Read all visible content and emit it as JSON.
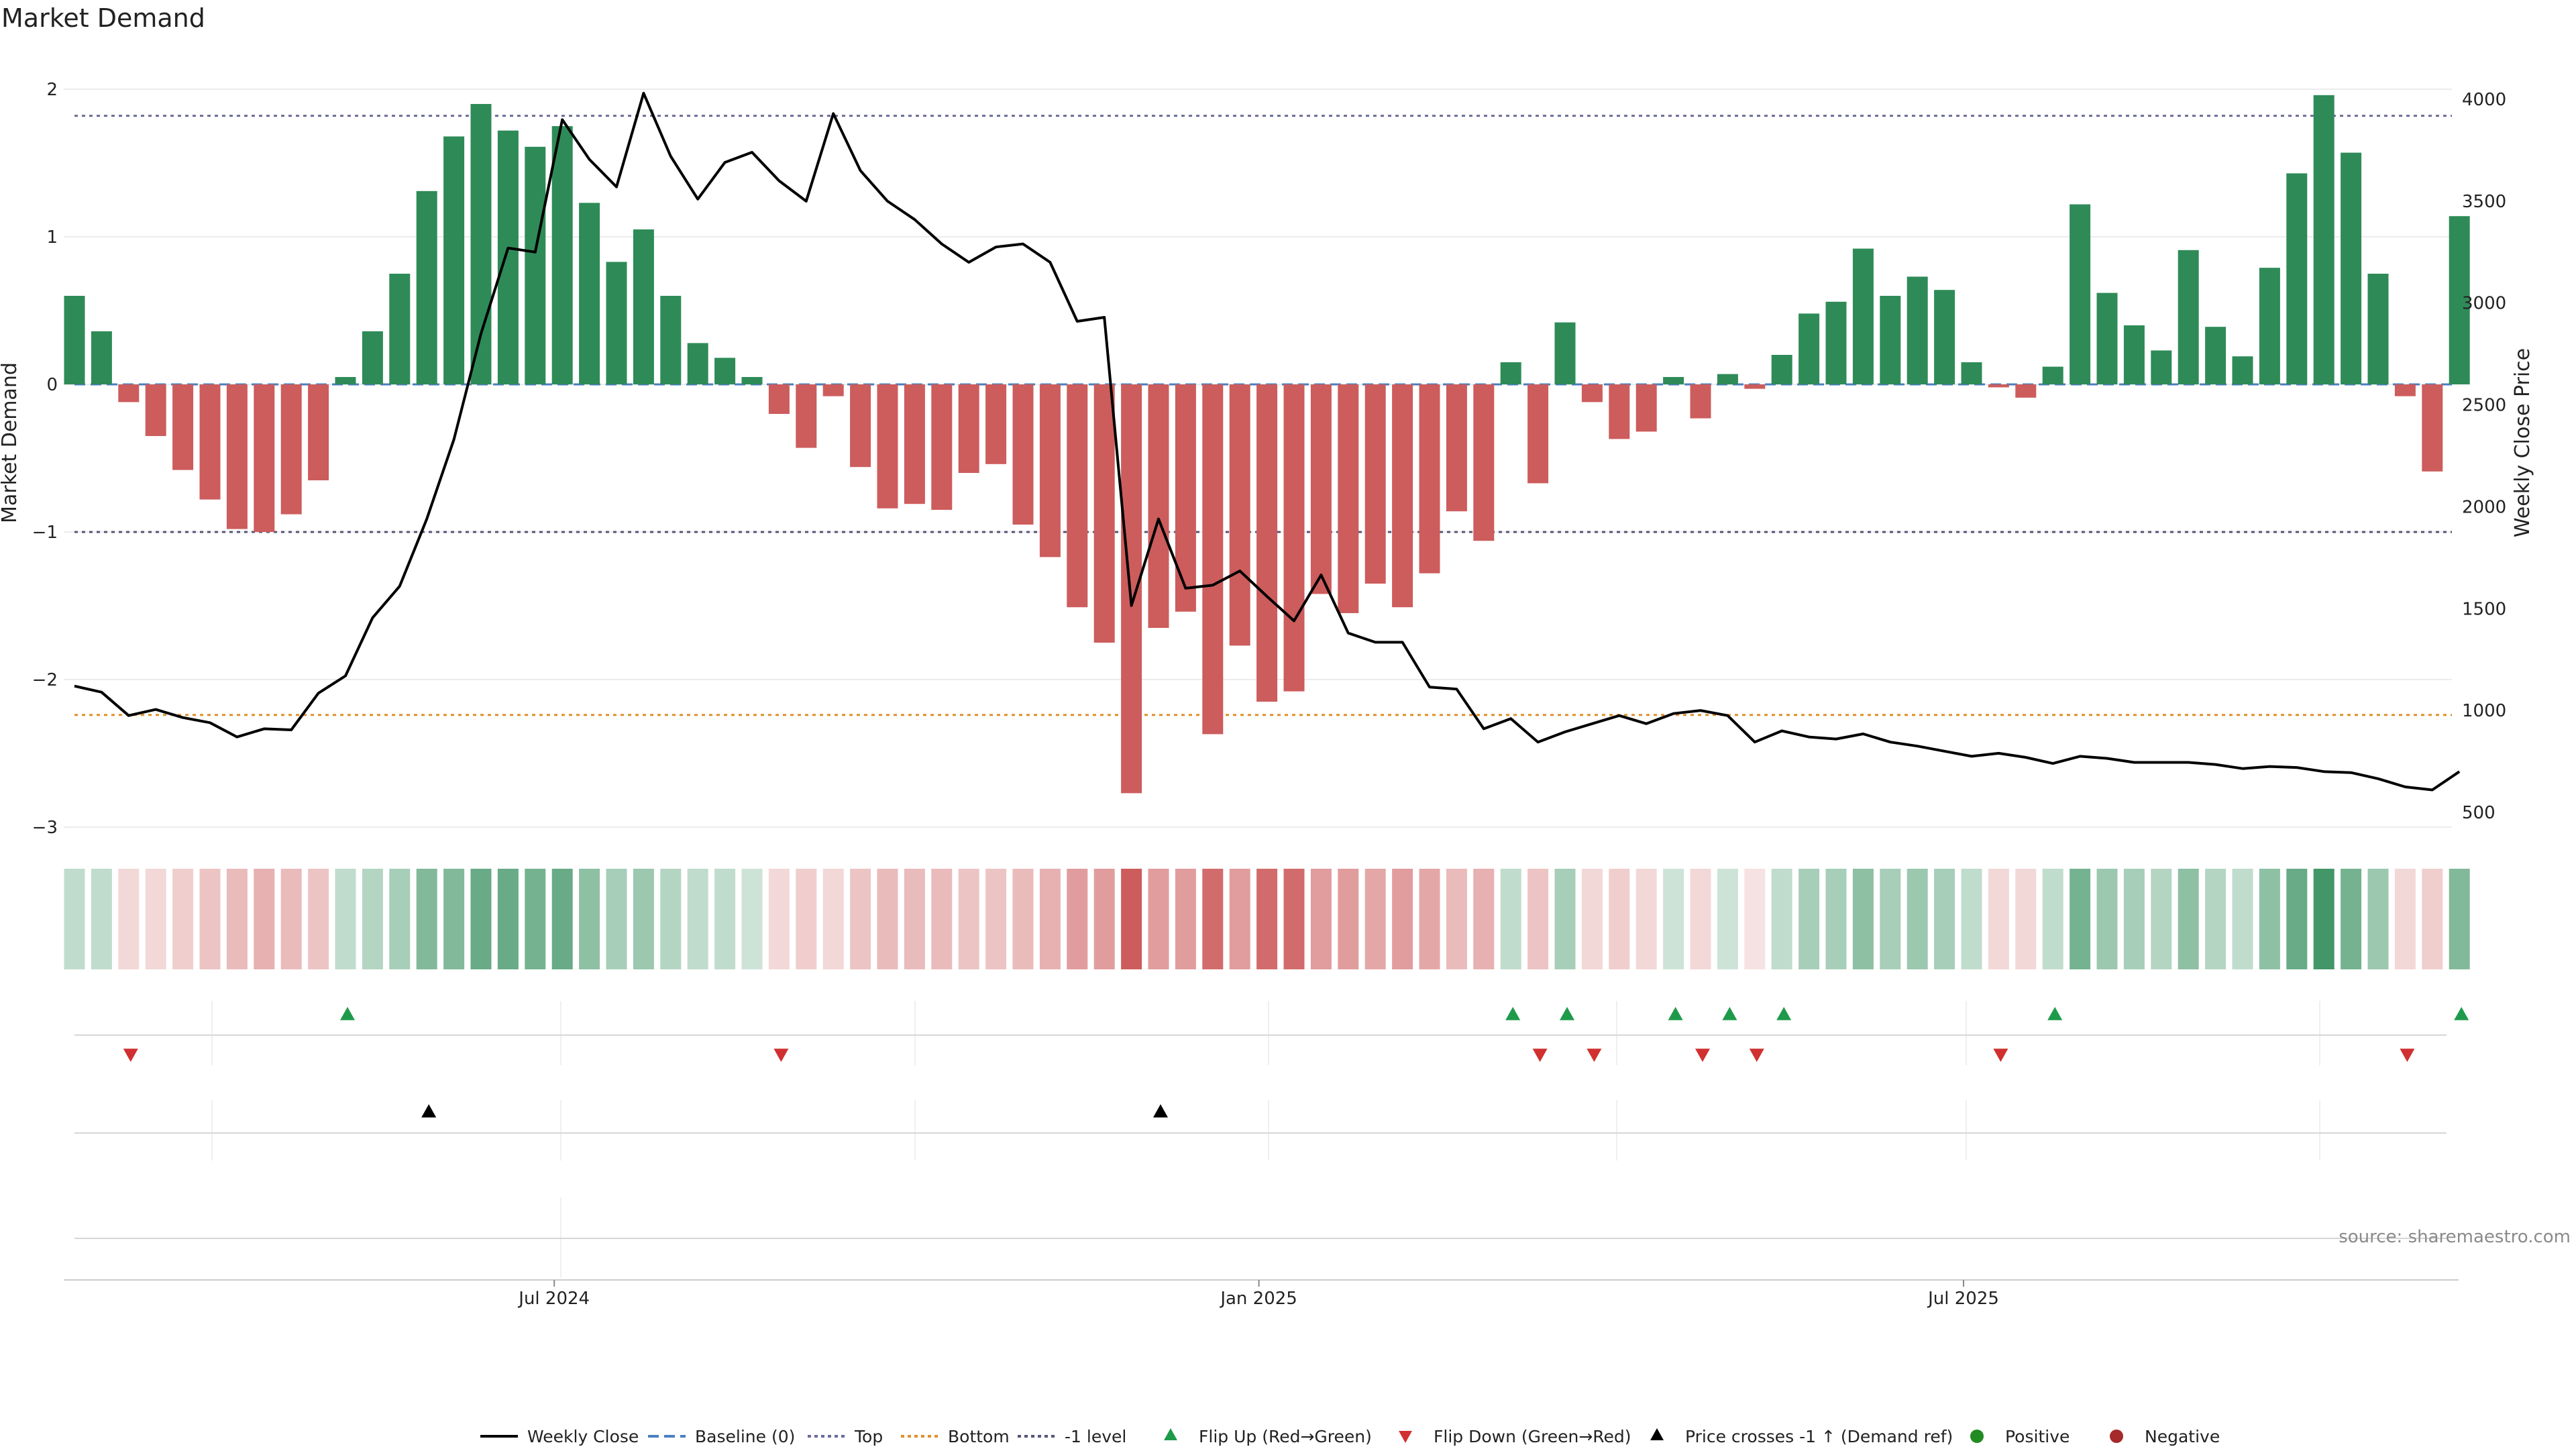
{
  "chart_data": {
    "type": "bar",
    "title": "Market Demand",
    "ylabel_left": "Market Demand",
    "ylabel_right": "Weekly Close Price",
    "ylim_left": [
      -3.1,
      2.2
    ],
    "ylim_right": [
      450,
      4200
    ],
    "yticks_left": [
      2,
      1,
      0,
      -1,
      -2,
      -3
    ],
    "yticks_right": [
      4000,
      3500,
      3000,
      2500,
      2000,
      1500,
      1000,
      500
    ],
    "x_tick_labels": [
      {
        "label": "Jul 2024",
        "index": 18
      },
      {
        "label": "Jan 2025",
        "index": 44
      },
      {
        "label": "Jul 2025",
        "index": 70
      }
    ],
    "levels": {
      "top": 1.82,
      "bottom": -2.24,
      "minus_one": -1,
      "baseline": 0
    },
    "colors": {
      "positive": "#2e8b57",
      "negative": "#cd5c5c",
      "price": "#000000",
      "top_line": "#6b6b9a",
      "bottom_line": "#e0902a",
      "baseline": "#4a7fc1",
      "minus_one_line": "#555577",
      "flip_up": "#1e9a4a",
      "flip_down": "#d03030",
      "positive_dot": "#228b22",
      "negative_dot": "#a52a2a"
    },
    "demand": [
      0.6,
      0.36,
      -0.12,
      -0.35,
      -0.58,
      -0.78,
      -0.98,
      -1.0,
      -0.88,
      -0.65,
      0.05,
      0.36,
      0.75,
      1.31,
      1.68,
      1.9,
      1.72,
      1.61,
      1.75,
      1.23,
      0.83,
      1.05,
      0.6,
      0.28,
      0.18,
      0.05,
      -0.2,
      -0.43,
      -0.08,
      -0.56,
      -0.84,
      -0.81,
      -0.85,
      -0.6,
      -0.54,
      -0.95,
      -1.17,
      -1.51,
      -1.75,
      -2.77,
      -1.65,
      -1.54,
      -2.37,
      -1.77,
      -2.15,
      -2.08,
      -1.42,
      -1.55,
      -1.35,
      -1.51,
      -1.28,
      -0.86,
      -1.06,
      0.15,
      -0.67,
      0.42,
      -0.12,
      -0.37,
      -0.32,
      0.05,
      -0.23,
      0.07,
      -0.03,
      0.2,
      0.48,
      0.56,
      0.92,
      0.6,
      0.73,
      0.64,
      0.15,
      -0.02,
      -0.09,
      0.12,
      1.22,
      0.62,
      0.4,
      0.23,
      0.91,
      0.39,
      0.19,
      0.79,
      1.43,
      1.96,
      1.57,
      0.75,
      -0.08,
      -0.59,
      1.14
    ],
    "price": [
      1120,
      1090,
      975,
      1005,
      965,
      940,
      870,
      910,
      905,
      1085,
      1170,
      1455,
      1610,
      1940,
      2330,
      2850,
      3270,
      3250,
      3900,
      3705,
      3570,
      4030,
      3720,
      3510,
      3690,
      3740,
      3600,
      3500,
      3930,
      3650,
      3500,
      3410,
      3290,
      3200,
      3275,
      3290,
      3200,
      2910,
      2930,
      1515,
      1940,
      1600,
      1615,
      1685,
      1560,
      1440,
      1665,
      1380,
      1335,
      1335,
      1115,
      1105,
      910,
      960,
      845,
      895,
      935,
      975,
      935,
      985,
      1000,
      975,
      845,
      900,
      870,
      860,
      885,
      845,
      825,
      800,
      775,
      790,
      770,
      740,
      775,
      765,
      745,
      745,
      745,
      735,
      715,
      725,
      720,
      700,
      695,
      665,
      625,
      610,
      700
    ],
    "shade_alpha": [
      0.3,
      0.3,
      0.24,
      0.24,
      0.3,
      0.36,
      0.42,
      0.48,
      0.42,
      0.36,
      0.3,
      0.36,
      0.42,
      0.6,
      0.6,
      0.72,
      0.72,
      0.66,
      0.72,
      0.54,
      0.42,
      0.48,
      0.36,
      0.3,
      0.3,
      0.24,
      0.24,
      0.3,
      0.24,
      0.36,
      0.42,
      0.42,
      0.42,
      0.36,
      0.36,
      0.42,
      0.48,
      0.6,
      0.6,
      1.0,
      0.6,
      0.6,
      0.9,
      0.6,
      0.9,
      0.9,
      0.6,
      0.6,
      0.54,
      0.6,
      0.54,
      0.42,
      0.48,
      0.3,
      0.36,
      0.42,
      0.24,
      0.3,
      0.24,
      0.24,
      0.24,
      0.24,
      0.18,
      0.3,
      0.42,
      0.42,
      0.54,
      0.42,
      0.48,
      0.42,
      0.3,
      0.24,
      0.24,
      0.3,
      0.66,
      0.48,
      0.42,
      0.36,
      0.54,
      0.36,
      0.3,
      0.54,
      0.72,
      0.9,
      0.66,
      0.48,
      0.24,
      0.3,
      0.6
    ],
    "flip_up_idx": [
      10,
      53,
      55,
      59,
      61,
      63,
      73,
      88
    ],
    "flip_down_idx": [
      2,
      26,
      54,
      56,
      60,
      62,
      71,
      86
    ],
    "price_cross_idx": [
      13,
      40
    ],
    "source": "source: sharemaestro.com"
  },
  "legend": [
    {
      "type": "line",
      "style": "solid",
      "color": "#000000",
      "label": "Weekly Close"
    },
    {
      "type": "line",
      "style": "dashed",
      "color": "#4a7fc1",
      "label": "Baseline (0)"
    },
    {
      "type": "line",
      "style": "dotted",
      "color": "#6b6b9a",
      "label": "Top"
    },
    {
      "type": "line",
      "style": "dotted",
      "color": "#e0902a",
      "label": "Bottom"
    },
    {
      "type": "line",
      "style": "dotted",
      "color": "#555577",
      "label": "-1 level"
    },
    {
      "type": "tri-up",
      "color": "#1e9a4a",
      "label": "Flip Up (Red→Green)"
    },
    {
      "type": "tri-down",
      "color": "#d03030",
      "label": "Flip Down (Green→Red)"
    },
    {
      "type": "tri-up",
      "color": "#000000",
      "label": "Price crosses -1 ↑ (Demand ref)"
    },
    {
      "type": "dot",
      "color": "#228b22",
      "label": "Positive"
    },
    {
      "type": "dot",
      "color": "#a52a2a",
      "label": "Negative"
    }
  ]
}
